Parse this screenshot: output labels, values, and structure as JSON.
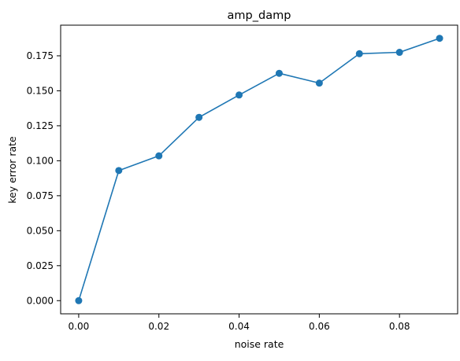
{
  "chart_data": {
    "type": "line",
    "title": "amp_damp",
    "xlabel": "noise rate",
    "ylabel": "key error rate",
    "x": [
      0.0,
      0.01,
      0.02,
      0.03,
      0.04,
      0.05,
      0.06,
      0.07,
      0.08,
      0.09
    ],
    "series": [
      {
        "name": "",
        "values": [
          0.0,
          0.093,
          0.1035,
          0.131,
          0.147,
          0.1625,
          0.1555,
          0.1765,
          0.1775,
          0.1875
        ],
        "color": "#1f77b4",
        "marker": "circle"
      }
    ],
    "xlim": [
      -0.0045,
      0.0945
    ],
    "ylim": [
      -0.0094,
      0.1969
    ],
    "xticks": [
      0.0,
      0.02,
      0.04,
      0.06,
      0.08
    ],
    "xtick_labels": [
      "0.00",
      "0.02",
      "0.04",
      "0.06",
      "0.08"
    ],
    "yticks": [
      0.0,
      0.025,
      0.05,
      0.075,
      0.1,
      0.125,
      0.15,
      0.175
    ],
    "ytick_labels": [
      "0.000",
      "0.025",
      "0.050",
      "0.075",
      "0.100",
      "0.125",
      "0.150",
      "0.175"
    ],
    "grid": false,
    "legend": "none"
  }
}
